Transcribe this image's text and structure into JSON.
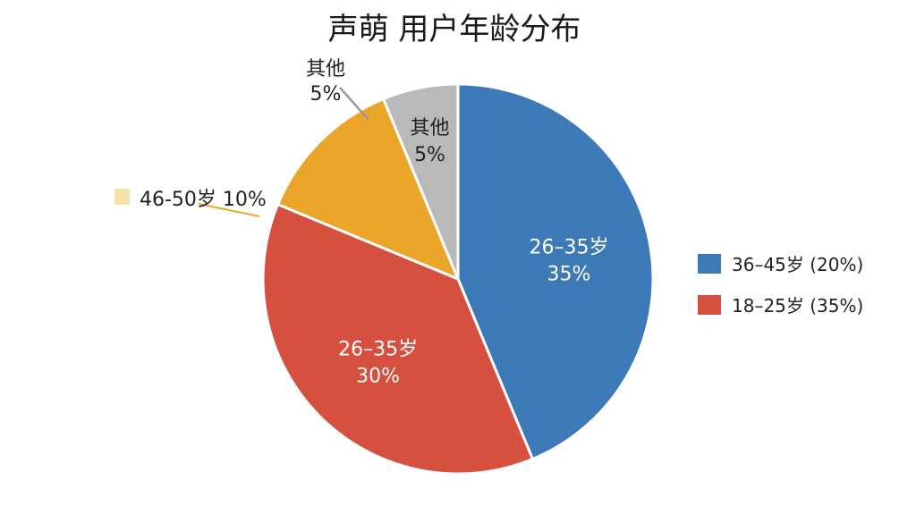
{
  "chart_data": {
    "type": "pie",
    "title": "声萌 用户年龄分布",
    "slices": [
      {
        "label": "26–35岁",
        "value": 35,
        "value_label": "35%",
        "color": "#3d79b7"
      },
      {
        "label": "26–35岁",
        "value": 30,
        "value_label": "30%",
        "color": "#d5503f"
      },
      {
        "label": "46-50岁",
        "value": 10,
        "value_label": "10%",
        "color": "#eba62a"
      },
      {
        "label": "其他",
        "value": 5,
        "value_label": "5%",
        "color": "#b9b9b9"
      }
    ],
    "callouts": [
      {
        "text": "46-50岁 10%",
        "swatch_color": "#f6e3a8"
      },
      {
        "label": "其他",
        "value_label": "5%"
      }
    ],
    "legend": {
      "placement": "right",
      "items": [
        {
          "text": "36–45岁 (20%)",
          "color": "#3d79b7"
        },
        {
          "text": "18–25岁  (35%)",
          "color": "#d5503f"
        }
      ]
    }
  }
}
